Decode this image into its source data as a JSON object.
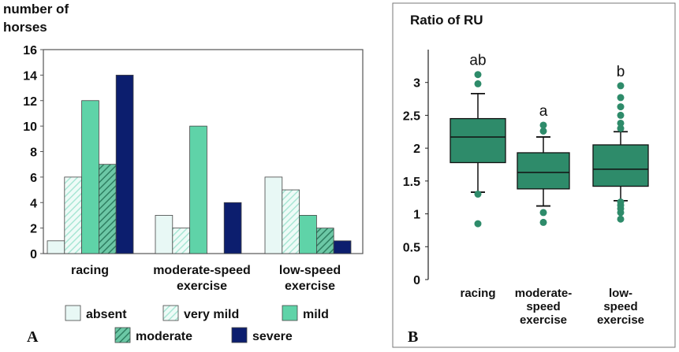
{
  "chart_data": [
    {
      "panel_label": "A",
      "type": "bar",
      "title": "",
      "ylabel": "number of horses",
      "xlabel": "",
      "ylim": [
        0,
        16
      ],
      "yticks": [
        "0",
        "2",
        "4",
        "6",
        "8",
        "10",
        "12",
        "14",
        "16"
      ],
      "categories": [
        "racing",
        "moderate-speed exercise",
        "low-speed exercise"
      ],
      "series": [
        {
          "name": "absent",
          "color": "#e8f8f5",
          "pattern": "solid",
          "values": [
            1,
            3,
            6
          ]
        },
        {
          "name": "very mild",
          "color": "#d4f4ec",
          "pattern": "hatch",
          "values": [
            6,
            2,
            5
          ]
        },
        {
          "name": "mild",
          "color": "#5fd3a8",
          "pattern": "solid",
          "values": [
            12,
            10,
            3
          ]
        },
        {
          "name": "moderate",
          "color": "#3a9070",
          "pattern": "hatch",
          "values": [
            7,
            0,
            2
          ]
        },
        {
          "name": "severe",
          "color": "#0c1e6e",
          "pattern": "solid",
          "values": [
            14,
            4,
            1
          ]
        }
      ],
      "grid": false,
      "legend_position": "bottom"
    },
    {
      "panel_label": "B",
      "type": "box",
      "title": "Ratio of RU",
      "ylabel": "",
      "xlabel": "",
      "ylim": [
        0,
        3.5
      ],
      "yticks": [
        "0",
        "0.5",
        "1",
        "1.5",
        "2",
        "2.5",
        "3"
      ],
      "categories": [
        "racing",
        "moderate-speed exercise",
        "low-speed exercise"
      ],
      "box_color": "#2e8b6a",
      "outlier_color": "#2e8b6a",
      "boxes": [
        {
          "letter": "ab",
          "whisker_low": 1.33,
          "q1": 1.78,
          "median": 2.17,
          "q3": 2.45,
          "whisker_high": 2.83,
          "outliers": [
            0.85,
            1.3,
            2.98,
            3.12
          ]
        },
        {
          "letter": "a",
          "whisker_low": 1.12,
          "q1": 1.38,
          "median": 1.63,
          "q3": 1.93,
          "whisker_high": 2.17,
          "outliers": [
            0.87,
            1.02,
            2.26,
            2.35
          ]
        },
        {
          "letter": "b",
          "whisker_low": 1.2,
          "q1": 1.42,
          "median": 1.68,
          "q3": 2.05,
          "whisker_high": 2.25,
          "outliers": [
            0.92,
            1.02,
            1.08,
            1.13,
            1.18,
            2.3,
            2.38,
            2.5,
            2.63,
            2.77,
            2.95
          ]
        }
      ],
      "grid": false
    }
  ]
}
